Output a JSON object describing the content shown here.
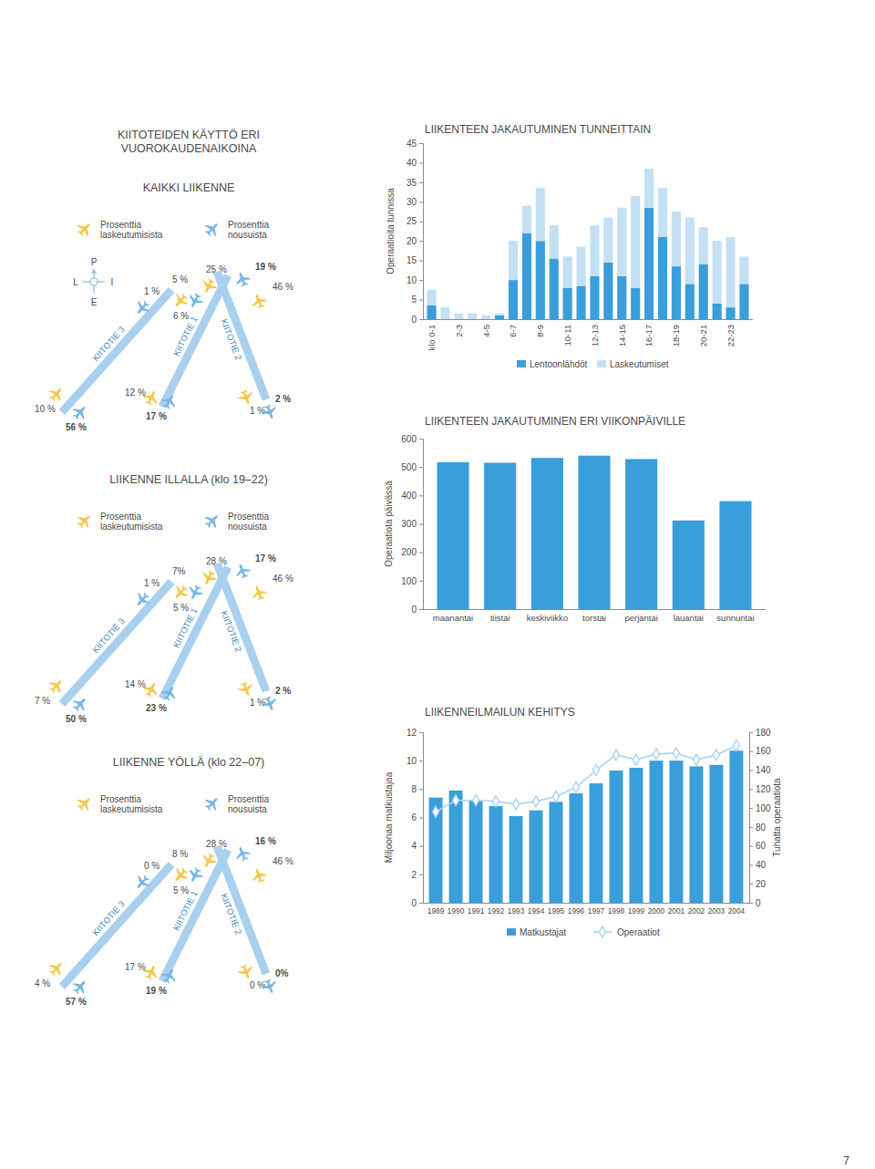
{
  "chart_data": [
    {
      "type": "bar",
      "title": "LIIKENTEEN JAKAUTUMINEN TUNNEITTAIN",
      "y_label": "Operaatioita tunnissa",
      "stacked": true,
      "legend": "bottom",
      "categories": [
        "klo 0-1",
        null,
        "2-3",
        null,
        "4-5",
        null,
        "6-7",
        null,
        "8-9",
        null,
        "10-11",
        null,
        "12-13",
        null,
        "14-15",
        null,
        "16-17",
        null,
        "18-19",
        null,
        "20-21",
        null,
        "22-23",
        null
      ],
      "series": [
        {
          "name": "Lentoonlähdöt",
          "color": "#3a9edb",
          "values": [
            3.5,
            0,
            0,
            0,
            0,
            1,
            10,
            22,
            20,
            15.5,
            8,
            8.5,
            11,
            14.5,
            11,
            8,
            28.5,
            21,
            13.5,
            9,
            14,
            4,
            3,
            9
          ]
        },
        {
          "name": "Laskeutumiset",
          "color": "#c4e0f4",
          "values": [
            4,
            3,
            1.5,
            1.5,
            1,
            0.5,
            10,
            7,
            13.5,
            8.5,
            8,
            10,
            13,
            11.5,
            17.5,
            23.5,
            10,
            12.5,
            14,
            17,
            9.5,
            16,
            18,
            7
          ]
        }
      ],
      "ylim": [
        0,
        45
      ],
      "yticks": [
        0,
        5,
        10,
        15,
        20,
        25,
        30,
        35,
        40,
        45
      ]
    },
    {
      "type": "bar",
      "title": "LIIKENTEEN JAKAUTUMINEN ERI VIIKONPÄIVILLE",
      "y_label": "Operaatiota päivässä",
      "categories": [
        "maanantai",
        "tiistai",
        "keskiviikko",
        "torstai",
        "perjantai",
        "lauantai",
        "sunnuntai"
      ],
      "values": [
        517,
        515,
        532,
        540,
        528,
        312,
        380
      ],
      "color": "#3a9edb",
      "ylim": [
        0,
        600
      ],
      "yticks": [
        0,
        100,
        200,
        300,
        400,
        500,
        600
      ]
    },
    {
      "type": "bar",
      "title": "LIIKENNEILMAILUN KEHITYS",
      "y_label": "Miljoonaa matkustajaa",
      "y2_label": "Tuhatta operaatiota",
      "legend": "bottom",
      "categories": [
        "1989",
        "1990",
        "1991",
        "1992",
        "1993",
        "1994",
        "1995",
        "1996",
        "1997",
        "1998",
        "1999",
        "2000",
        "2001",
        "2002",
        "2003",
        "2004"
      ],
      "series": [
        {
          "name": "Matkustajat",
          "type": "bar",
          "color": "#3a9edb",
          "values": [
            7.4,
            7.9,
            7.2,
            6.8,
            6.1,
            6.5,
            7.1,
            7.7,
            8.4,
            9.3,
            9.5,
            10.0,
            10.0,
            9.6,
            9.7,
            10.7
          ]
        },
        {
          "name": "Operaatiot",
          "type": "line",
          "axis": "y2",
          "color": "#a9d4f2",
          "marker": "diamond",
          "values": [
            96,
            108,
            108,
            107,
            104,
            107,
            112,
            122,
            140,
            156,
            151,
            157,
            158,
            151,
            156,
            166
          ]
        }
      ],
      "ylim": [
        0,
        12
      ],
      "yticks": [
        0,
        2,
        4,
        6,
        8,
        10,
        12
      ],
      "y2lim": [
        0,
        180
      ],
      "y2ticks": [
        0,
        20,
        40,
        60,
        80,
        100,
        120,
        140,
        160,
        180
      ]
    }
  ],
  "runway_usage": {
    "heading": [
      "KIITOTEIDEN KÄYTTÖ ERI",
      "VUOROKAUDENAIKOINA"
    ],
    "compass": {
      "north": "P",
      "west": "L",
      "east": "I",
      "south": "E"
    },
    "panels": [
      {
        "title": "KAIKKI LIIKENNE",
        "legend": {
          "landings": [
            "Prosenttia",
            "laskeutumisista"
          ],
          "takeoffs": [
            "Prosenttia",
            "nousuista"
          ]
        },
        "runways": [
          {
            "name": "KIITOTIE 3",
            "ends": [
              {
                "landings": "10 %",
                "takeoffs": "56 %"
              },
              {
                "landings": "6 %",
                "takeoffs": "1 %"
              }
            ]
          },
          {
            "name": "KIITOTIE 1",
            "ends": [
              {
                "landings": "12 %",
                "takeoffs": "17 %"
              },
              {
                "landings": "25 %",
                "takeoffs": "5 %"
              }
            ]
          },
          {
            "name": "KIITOTIE 2",
            "ends": [
              {
                "landings": "1 %",
                "takeoffs": "2 %"
              },
              {
                "landings": "46 %",
                "takeoffs": "19 %"
              }
            ]
          }
        ]
      },
      {
        "title": "LIIKENNE ILLALLA (klo 19–22)",
        "legend": {
          "landings": [
            "Prosenttia",
            "laskeutumisista"
          ],
          "takeoffs": [
            "Prosenttia",
            "nousuista"
          ]
        },
        "runways": [
          {
            "name": "KIITOTIE 3",
            "ends": [
              {
                "landings": "7 %",
                "takeoffs": "50 %"
              },
              {
                "landings": "5 %",
                "takeoffs": "1 %"
              }
            ]
          },
          {
            "name": "KIITOTIE 1",
            "ends": [
              {
                "landings": "14 %",
                "takeoffs": "23 %"
              },
              {
                "landings": "28 %",
                "takeoffs": "7%"
              }
            ]
          },
          {
            "name": "KIITOTIE 2",
            "ends": [
              {
                "landings": "1 %",
                "takeoffs": "2 %"
              },
              {
                "landings": "46 %",
                "takeoffs": "17 %"
              }
            ]
          }
        ]
      },
      {
        "title": "LIIKENNE YÖLLÄ (klo 22–07)",
        "legend": {
          "landings": [
            "Prosenttia",
            "laskeutumisista"
          ],
          "takeoffs": [
            "Prosenttia",
            "nousuista"
          ]
        },
        "runways": [
          {
            "name": "KIITOTIE 3",
            "ends": [
              {
                "landings": "4 %",
                "takeoffs": "57 %"
              },
              {
                "landings": "5 %",
                "takeoffs": "0 %"
              }
            ]
          },
          {
            "name": "KIITOTIE 1",
            "ends": [
              {
                "landings": "17 %",
                "takeoffs": "19 %"
              },
              {
                "landings": "28 %",
                "takeoffs": "8 %"
              }
            ]
          },
          {
            "name": "KIITOTIE 2",
            "ends": [
              {
                "landings": "0 %",
                "takeoffs": "0%"
              },
              {
                "landings": "46 %",
                "takeoffs": "16 %"
              }
            ]
          }
        ]
      }
    ]
  },
  "page_number": "7"
}
